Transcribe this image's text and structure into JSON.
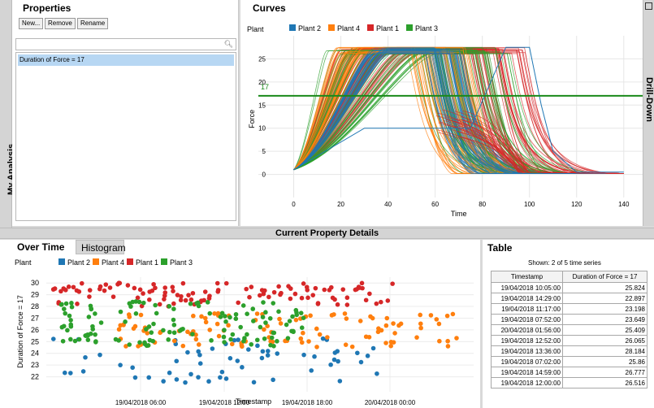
{
  "side_tab": {
    "label": "My Analysis"
  },
  "properties": {
    "title": "Properties",
    "buttons": {
      "new": "New...",
      "remove": "Remove",
      "rename": "Rename"
    },
    "search_placeholder": "",
    "search_icon": "magnifier-icon",
    "items": [
      "Duration of Force = 17"
    ]
  },
  "curves": {
    "title": "Curves",
    "legend_title": "Plant",
    "legend": [
      {
        "name": "Plant 2",
        "color": "#1f77b4"
      },
      {
        "name": "Plant 4",
        "color": "#ff7f0e"
      },
      {
        "name": "Plant 1",
        "color": "#d62728"
      },
      {
        "name": "Plant 3",
        "color": "#2ca02c"
      }
    ],
    "threshold_label": "17",
    "threshold_value": 17,
    "threshold_color": "#1a8a1a"
  },
  "drill_down": {
    "label": "Drill-Down"
  },
  "details_bar": {
    "label": "Current Property Details"
  },
  "tabs": {
    "over_time": "Over Time",
    "histogram": "Histogram"
  },
  "table": {
    "title": "Table",
    "shown": "Shown: 2 of 5 time series",
    "headers": [
      "Timestamp",
      "Duration of Force = 17"
    ],
    "rows": [
      [
        "19/04/2018 10:05:00",
        "25.824"
      ],
      [
        "19/04/2018 14:29:00",
        "22.897"
      ],
      [
        "19/04/2018 11:17:00",
        "23.198"
      ],
      [
        "19/04/2018 07:52:00",
        "23.649"
      ],
      [
        "20/04/2018 01:56:00",
        "25.409"
      ],
      [
        "19/04/2018 12:52:00",
        "26.065"
      ],
      [
        "19/04/2018 13:36:00",
        "28.184"
      ],
      [
        "19/04/2018 07:02:00",
        "25.86"
      ],
      [
        "19/04/2018 14:59:00",
        "26.777"
      ],
      [
        "19/04/2018 12:00:00",
        "26.516"
      ]
    ]
  },
  "chart_data": [
    {
      "type": "line",
      "title": "Curves",
      "xlabel": "Time",
      "ylabel": "Force",
      "xlim": [
        -15,
        148
      ],
      "ylim": [
        -5,
        30
      ],
      "xticks": [
        "0",
        "20",
        "40",
        "60",
        "80",
        "100",
        "120",
        "140"
      ],
      "yticks": [
        "0",
        "5",
        "10",
        "15",
        "20",
        "25"
      ],
      "legend_title": "Plant",
      "series": [
        {
          "name": "Plant 2",
          "color": "#1f77b4",
          "rise_end": [
            33,
            42
          ],
          "fall_end": [
            55,
            72
          ],
          "peak": 27.5
        },
        {
          "name": "Plant 4",
          "color": "#ff7f0e",
          "rise_end": [
            18,
            40
          ],
          "fall_end": [
            48,
            75
          ],
          "peak": 27.5
        },
        {
          "name": "Plant 1",
          "color": "#d62728",
          "rise_end": [
            20,
            55
          ],
          "fall_end": [
            75,
            100
          ],
          "peak": 27.5
        },
        {
          "name": "Plant 3",
          "color": "#2ca02c",
          "rise_end": [
            14,
            62
          ],
          "fall_end": [
            50,
            92
          ],
          "peak": 27.5
        }
      ],
      "outlier_curve": {
        "color": "#1f77b4",
        "x": [
          0,
          30,
          75,
          90,
          100,
          105,
          110,
          120,
          140
        ],
        "y": [
          1,
          10,
          10,
          27.5,
          27.5,
          15,
          5,
          0.5,
          0.5
        ]
      },
      "threshold": 17,
      "grid": true,
      "legend_position": "top"
    },
    {
      "type": "scatter",
      "xlabel": "Timestamp",
      "ylabel": "Duration of Force = 17",
      "ylim": [
        21,
        30.5
      ],
      "yticks": [
        "22",
        "23",
        "24",
        "25",
        "26",
        "27",
        "28",
        "29",
        "30"
      ],
      "xticks": [
        "19/04/2018 06:00",
        "19/04/2018 12:00",
        "19/04/2018 18:00",
        "20/04/2018 00:00"
      ],
      "legend_title": "Plant",
      "series": [
        {
          "name": "Plant 2",
          "color": "#1f77b4",
          "y_range": [
            21.5,
            25.5
          ]
        },
        {
          "name": "Plant 4",
          "color": "#ff7f0e",
          "y_range": [
            24.5,
            27.5
          ]
        },
        {
          "name": "Plant 1",
          "color": "#d62728",
          "y_range": [
            28.0,
            30.0
          ]
        },
        {
          "name": "Plant 3",
          "color": "#2ca02c",
          "y_range": [
            24.5,
            28.5
          ]
        }
      ],
      "grid": true,
      "legend_position": "top"
    }
  ]
}
